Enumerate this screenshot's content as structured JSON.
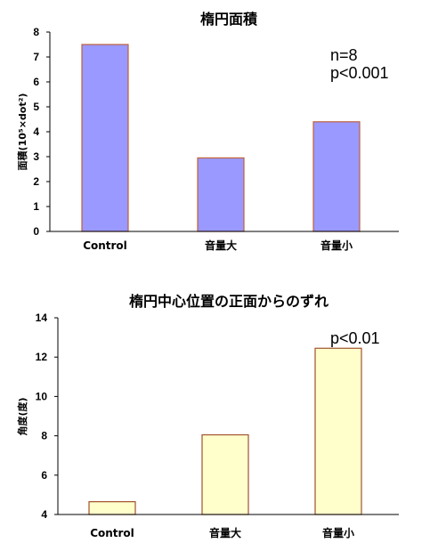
{
  "chart_data": [
    {
      "type": "bar",
      "title": "楕円面積",
      "ylabel": "面積(10⁵×dot²)",
      "categories": [
        "Control",
        "音量大",
        "音量小"
      ],
      "values": [
        7.5,
        2.95,
        4.4
      ],
      "ylim": [
        0,
        8
      ],
      "yticks": [
        0,
        1,
        2,
        3,
        4,
        5,
        6,
        7,
        8
      ],
      "annotations": [
        "n=8",
        "p<0.001"
      ],
      "bar_color": "#9999ff",
      "bar_edge_color": "#c0603a",
      "grid": false
    },
    {
      "type": "bar",
      "title": "楕円中心位置の正面からのずれ",
      "ylabel": "角度(度)",
      "categories": [
        "Control",
        "音量大",
        "音量小"
      ],
      "values": [
        4.65,
        8.05,
        12.45
      ],
      "ylim": [
        4,
        14
      ],
      "yticks": [
        4,
        6,
        8,
        10,
        12,
        14
      ],
      "annotations": [
        "p<0.01"
      ],
      "bar_color": "#ffffcc",
      "bar_edge_color": "#a0522d",
      "grid": false
    }
  ]
}
